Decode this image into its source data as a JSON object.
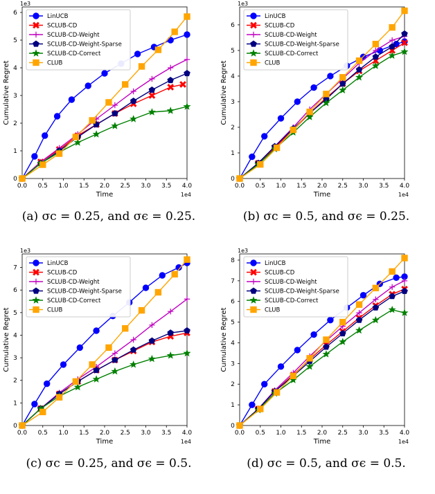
{
  "common": {
    "xlabel": "Time",
    "ylabel": "Cumulative Regret",
    "x_multiplier": "1e4",
    "y_multiplier": "1e3",
    "x_ticks": [
      "0.0",
      "0.5",
      "1.0",
      "1.5",
      "2.0",
      "2.5",
      "3.0",
      "3.5",
      "4.0"
    ],
    "legend": [
      {
        "name": "LinUCB",
        "color": "#0000ff",
        "marker": "circle"
      },
      {
        "name": "SCLUB-CD",
        "color": "#ff0000",
        "marker": "x"
      },
      {
        "name": "SCLUB-CD-Weight",
        "color": "#c000c0",
        "marker": "plus"
      },
      {
        "name": "SCLUB-CD-Weight-Sparse",
        "color": "#000080",
        "marker": "pentagon"
      },
      {
        "name": "SCLUB-CD-Correct",
        "color": "#008000",
        "marker": "star"
      },
      {
        "name": "CLUB",
        "color": "#ffa500",
        "marker": "square"
      }
    ]
  },
  "captions": [
    "(a)  σc = 0.25, and σϵ = 0.25.",
    "(b)  σc = 0.5, and σϵ = 0.25.",
    "(c)  σc = 0.25, and σϵ = 0.5.",
    "(d)  σc = 0.5, and σϵ = 0.5."
  ],
  "chart_data": [
    {
      "type": "line",
      "xlim": [
        0,
        40000
      ],
      "ylim": [
        0,
        6200
      ],
      "yticks": [
        0,
        1,
        2,
        3,
        4,
        5,
        6
      ],
      "series": [
        {
          "name": "LinUCB",
          "x": [
            0,
            3000,
            5500,
            8500,
            12000,
            16000,
            20000,
            24000,
            28000,
            32000,
            36000,
            40000
          ],
          "y": [
            0,
            800,
            1550,
            2250,
            2850,
            3350,
            3800,
            4150,
            4500,
            4750,
            5000,
            5200
          ]
        },
        {
          "name": "SCLUB-CD",
          "x": [
            0,
            4500,
            9000,
            13500,
            18000,
            22500,
            27000,
            31500,
            36000,
            39000
          ],
          "y": [
            0,
            600,
            1050,
            1550,
            1950,
            2350,
            2700,
            3000,
            3300,
            3400
          ]
        },
        {
          "name": "SCLUB-CD-Weight",
          "x": [
            0,
            4500,
            9000,
            13500,
            18000,
            22500,
            27000,
            31500,
            36000,
            40000
          ],
          "y": [
            0,
            600,
            1100,
            1600,
            2150,
            2650,
            3150,
            3600,
            4000,
            4300
          ]
        },
        {
          "name": "SCLUB-CD-Weight-Sparse",
          "x": [
            0,
            4500,
            9000,
            13500,
            18000,
            22500,
            27000,
            31500,
            36000,
            40000
          ],
          "y": [
            0,
            550,
            1000,
            1500,
            1950,
            2350,
            2800,
            3200,
            3550,
            3800
          ]
        },
        {
          "name": "SCLUB-CD-Correct",
          "x": [
            0,
            4500,
            9000,
            13500,
            18000,
            22500,
            27000,
            31500,
            36000,
            40000
          ],
          "y": [
            0,
            550,
            950,
            1300,
            1600,
            1900,
            2150,
            2400,
            2450,
            2600
          ]
        },
        {
          "name": "CLUB",
          "x": [
            0,
            5000,
            9000,
            13000,
            17000,
            21000,
            25000,
            29000,
            33000,
            37000,
            40000
          ],
          "y": [
            0,
            500,
            900,
            1500,
            2100,
            2750,
            3400,
            4050,
            4650,
            5300,
            5850
          ]
        }
      ]
    },
    {
      "type": "line",
      "xlim": [
        0,
        40000
      ],
      "ylim": [
        0,
        6700
      ],
      "yticks": [
        0,
        1,
        2,
        3,
        4,
        5,
        6
      ],
      "series": [
        {
          "name": "LinUCB",
          "x": [
            0,
            3000,
            6000,
            10000,
            14000,
            18000,
            22000,
            26000,
            30000,
            34000,
            38000,
            40000
          ],
          "y": [
            0,
            850,
            1650,
            2350,
            3000,
            3550,
            4000,
            4400,
            4750,
            5000,
            5250,
            5350
          ]
        },
        {
          "name": "SCLUB-CD",
          "x": [
            0,
            4500,
            8500,
            13000,
            17000,
            21000,
            25000,
            29000,
            33000,
            37000,
            40000
          ],
          "y": [
            0,
            600,
            1200,
            1900,
            2550,
            3150,
            3700,
            4200,
            4600,
            5000,
            5300
          ]
        },
        {
          "name": "SCLUB-CD-Weight",
          "x": [
            0,
            4500,
            8500,
            13000,
            17000,
            21000,
            25000,
            29000,
            33000,
            37000,
            40000
          ],
          "y": [
            0,
            600,
            1250,
            2000,
            2700,
            3300,
            3900,
            4500,
            5000,
            5400,
            5550
          ]
        },
        {
          "name": "SCLUB-CD-Weight-Sparse",
          "x": [
            0,
            4500,
            8500,
            13000,
            17000,
            21000,
            25000,
            29000,
            33000,
            37000,
            40000
          ],
          "y": [
            0,
            600,
            1250,
            1950,
            2550,
            3100,
            3700,
            4250,
            4750,
            5150,
            5650
          ]
        },
        {
          "name": "SCLUB-CD-Correct",
          "x": [
            0,
            4500,
            8500,
            13000,
            17000,
            21000,
            25000,
            29000,
            33000,
            37000,
            40000
          ],
          "y": [
            0,
            550,
            1150,
            1800,
            2400,
            2950,
            3450,
            3950,
            4400,
            4800,
            4950
          ]
        },
        {
          "name": "CLUB",
          "x": [
            0,
            5000,
            9000,
            13000,
            17000,
            21000,
            25000,
            29000,
            33000,
            37000,
            40000
          ],
          "y": [
            0,
            550,
            1200,
            1900,
            2600,
            3300,
            3950,
            4600,
            5250,
            5900,
            6550
          ]
        }
      ]
    },
    {
      "type": "line",
      "xlim": [
        0,
        40000
      ],
      "ylim": [
        0,
        7600
      ],
      "yticks": [
        0,
        1,
        2,
        3,
        4,
        5,
        6,
        7
      ],
      "series": [
        {
          "name": "LinUCB",
          "x": [
            0,
            3000,
            6000,
            10000,
            14000,
            18000,
            22000,
            26000,
            30000,
            34000,
            38000,
            40000
          ],
          "y": [
            0,
            950,
            1850,
            2700,
            3450,
            4200,
            4850,
            5450,
            6100,
            6650,
            7000,
            7200
          ]
        },
        {
          "name": "SCLUB-CD",
          "x": [
            0,
            4500,
            9000,
            13500,
            18000,
            22500,
            27000,
            31500,
            36000,
            40000
          ],
          "y": [
            0,
            750,
            1400,
            1950,
            2450,
            2900,
            3300,
            3700,
            3950,
            4100
          ]
        },
        {
          "name": "SCLUB-CD-Weight",
          "x": [
            0,
            4500,
            9000,
            13500,
            18000,
            22500,
            27000,
            31500,
            36000,
            40000
          ],
          "y": [
            0,
            750,
            1450,
            2050,
            2600,
            3200,
            3800,
            4450,
            5050,
            5600
          ]
        },
        {
          "name": "SCLUB-CD-Weight-Sparse",
          "x": [
            0,
            4500,
            9000,
            13500,
            18000,
            22500,
            27000,
            31500,
            36000,
            40000
          ],
          "y": [
            0,
            750,
            1400,
            1950,
            2450,
            2900,
            3350,
            3750,
            4100,
            4200
          ]
        },
        {
          "name": "SCLUB-CD-Correct",
          "x": [
            0,
            4500,
            9000,
            13500,
            18000,
            22500,
            27000,
            31500,
            36000,
            40000
          ],
          "y": [
            0,
            750,
            1300,
            1700,
            2050,
            2400,
            2700,
            2950,
            3100,
            3200
          ]
        },
        {
          "name": "CLUB",
          "x": [
            0,
            5000,
            9000,
            13000,
            17000,
            21000,
            25000,
            29000,
            33000,
            37000,
            40000
          ],
          "y": [
            0,
            600,
            1250,
            1950,
            2700,
            3450,
            4300,
            5100,
            5900,
            6700,
            7350
          ]
        }
      ]
    },
    {
      "type": "line",
      "xlim": [
        0,
        40000
      ],
      "ylim": [
        0,
        8300
      ],
      "yticks": [
        0,
        1,
        2,
        3,
        4,
        5,
        6,
        7,
        8
      ],
      "series": [
        {
          "name": "LinUCB",
          "x": [
            0,
            3000,
            6000,
            10000,
            14000,
            18000,
            22000,
            26000,
            30000,
            34000,
            38000,
            40000
          ],
          "y": [
            0,
            1000,
            2000,
            2850,
            3650,
            4400,
            5100,
            5700,
            6300,
            6850,
            7150,
            7200
          ]
        },
        {
          "name": "SCLUB-CD",
          "x": [
            0,
            4500,
            8500,
            13000,
            17000,
            21000,
            25000,
            29000,
            33000,
            37000,
            40000
          ],
          "y": [
            0,
            800,
            1650,
            2450,
            3200,
            3900,
            4550,
            5200,
            5800,
            6350,
            6600
          ]
        },
        {
          "name": "SCLUB-CD-Weight",
          "x": [
            0,
            4500,
            8500,
            13000,
            17000,
            21000,
            25000,
            29000,
            33000,
            37000,
            40000
          ],
          "y": [
            0,
            800,
            1700,
            2550,
            3350,
            4100,
            4800,
            5450,
            6100,
            6700,
            7000
          ]
        },
        {
          "name": "SCLUB-CD-Weight-Sparse",
          "x": [
            0,
            4500,
            8500,
            13000,
            17000,
            21000,
            25000,
            29000,
            33000,
            37000,
            40000
          ],
          "y": [
            0,
            800,
            1650,
            2400,
            3100,
            3800,
            4450,
            5100,
            5700,
            6250,
            6500
          ]
        },
        {
          "name": "SCLUB-CD-Correct",
          "x": [
            0,
            4500,
            8500,
            13000,
            17000,
            21000,
            25000,
            29000,
            33000,
            37000,
            40000
          ],
          "y": [
            0,
            750,
            1550,
            2200,
            2850,
            3450,
            4050,
            4600,
            5100,
            5600,
            5450
          ]
        },
        {
          "name": "CLUB",
          "x": [
            0,
            5000,
            9000,
            13000,
            17000,
            21000,
            25000,
            29000,
            33000,
            37000,
            40000
          ],
          "y": [
            0,
            800,
            1600,
            2400,
            3250,
            4150,
            5000,
            5850,
            6650,
            7450,
            8100
          ]
        }
      ]
    }
  ]
}
